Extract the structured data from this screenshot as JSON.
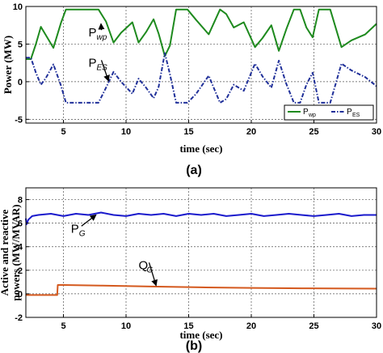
{
  "chart_data": [
    {
      "type": "line",
      "caption": "(a)",
      "xlabel": "time (sec)",
      "ylabel": "Power (MW)",
      "xlim": [
        2,
        30
      ],
      "ylim": [
        -5.5,
        10
      ],
      "xticks": [
        5,
        10,
        15,
        20,
        25,
        30
      ],
      "yticks": [
        -5,
        0,
        5,
        10
      ],
      "grid": true,
      "legend": "bottom-right",
      "legend_items": [
        {
          "base": "P",
          "sub": "wp",
          "color": "#1e8a1e",
          "dash": "solid"
        },
        {
          "base": "P",
          "sub": "ES",
          "color": "#1f2f99",
          "dash": "dashdot"
        }
      ],
      "annotations": [
        {
          "base": "P",
          "sub": "wp",
          "text_at": [
            7.0,
            6.0
          ],
          "arrow_to": [
            8.0,
            7.7
          ]
        },
        {
          "base": "P",
          "sub": "ES",
          "text_at": [
            7.0,
            2.0
          ],
          "arrow_to": [
            8.6,
            0.1
          ]
        }
      ],
      "series": [
        {
          "name": "P_wp",
          "color": "#1e8a1e",
          "dash": "solid",
          "x": [
            2,
            2.4,
            2.8,
            3.2,
            4.2,
            4.8,
            5.2,
            6.5,
            7.8,
            8.4,
            9.0,
            9.6,
            10.5,
            11.0,
            11.6,
            12.2,
            12.6,
            13.1,
            13.5,
            14.0,
            14.5,
            14.9,
            15.6,
            16.6,
            17.5,
            18.0,
            18.6,
            19.4,
            20.3,
            20.9,
            21.6,
            22.2,
            22.8,
            23.4,
            23.9,
            24.4,
            24.9,
            25.4,
            26.0,
            26.3,
            27.2,
            28.0,
            29.1,
            30
          ],
          "y": [
            3.0,
            3.0,
            5.0,
            7.3,
            4.5,
            7.8,
            9.6,
            9.6,
            9.6,
            8.0,
            5.2,
            6.5,
            7.9,
            5.2,
            6.6,
            8.3,
            6.4,
            3.4,
            4.8,
            9.6,
            9.6,
            9.6,
            8.2,
            6.3,
            9.6,
            9.0,
            7.2,
            7.9,
            4.6,
            5.8,
            7.5,
            4.1,
            7.0,
            9.6,
            9.6,
            7.2,
            5.9,
            9.6,
            9.6,
            9.6,
            4.6,
            5.5,
            6.3,
            7.7
          ]
        },
        {
          "name": "P_ES",
          "color": "#1f2f99",
          "dash": "dashdot",
          "x": [
            2,
            2.4,
            2.8,
            3.2,
            3.6,
            4.2,
            4.8,
            5.2,
            6.5,
            7.8,
            8.4,
            9.0,
            9.6,
            10.5,
            11.0,
            11.6,
            12.2,
            12.6,
            13.1,
            13.5,
            14.0,
            14.5,
            14.9,
            15.6,
            16.6,
            17.5,
            18.0,
            18.6,
            19.4,
            20.3,
            20.9,
            21.6,
            22.2,
            22.8,
            23.4,
            23.9,
            24.4,
            24.9,
            25.4,
            26.0,
            26.3,
            27.2,
            28.0,
            29.1,
            30
          ],
          "y": [
            3.2,
            3.2,
            1.2,
            -0.4,
            0.5,
            2.3,
            -0.5,
            -2.8,
            -2.8,
            -2.8,
            -0.8,
            1.3,
            0.0,
            -1.6,
            0.4,
            -0.8,
            -2.2,
            -0.7,
            3.8,
            1.0,
            -2.8,
            -2.8,
            -2.8,
            -1.6,
            0.8,
            -2.8,
            -2.3,
            -0.4,
            -1.2,
            2.4,
            0.7,
            -0.8,
            2.8,
            -0.3,
            -2.8,
            -2.8,
            -0.4,
            1.2,
            -2.8,
            -2.8,
            -2.8,
            2.4,
            1.5,
            0.6,
            -0.6
          ]
        }
      ]
    },
    {
      "type": "line",
      "caption": "(b)",
      "xlabel": "time (sec)",
      "ylabel": "Active and reactive powers (MW/MVAR)",
      "ylabel_lines": [
        "Active and reactive",
        "powers (MW/MVAR)"
      ],
      "xlim": [
        2,
        30
      ],
      "ylim": [
        -2,
        9
      ],
      "xticks": [
        5,
        10,
        15,
        20,
        25,
        30
      ],
      "yticks": [
        -2,
        0,
        2,
        4,
        6,
        8
      ],
      "grid": true,
      "annotations": [
        {
          "base": "P",
          "sub": "G",
          "text_at": [
            5.6,
            5.2
          ],
          "arrow_to": [
            7.6,
            6.7
          ]
        },
        {
          "base": "Q",
          "sub": "G",
          "text_at": [
            11.0,
            2.1
          ],
          "arrow_to": [
            12.4,
            0.7
          ]
        }
      ],
      "series": [
        {
          "name": "P_G",
          "color": "#1a1acc",
          "dash": "solid",
          "x": [
            2,
            2.05,
            2.2,
            2.5,
            3,
            4,
            5,
            6,
            7,
            8,
            9,
            10,
            11,
            12,
            13,
            14,
            15,
            16,
            17,
            18,
            19,
            20,
            21,
            22,
            23,
            24,
            25,
            26,
            27,
            28,
            29,
            30
          ],
          "y": [
            6.4,
            5.9,
            6.3,
            6.6,
            6.7,
            6.8,
            6.6,
            6.8,
            6.7,
            6.9,
            6.7,
            6.6,
            6.8,
            6.7,
            6.8,
            6.6,
            6.8,
            6.7,
            6.8,
            6.6,
            6.7,
            6.8,
            6.6,
            6.7,
            6.8,
            6.7,
            6.6,
            6.7,
            6.8,
            6.6,
            6.7,
            6.7
          ]
        },
        {
          "name": "Q_G",
          "color": "#d4591e",
          "dash": "solid",
          "x": [
            2,
            4.5,
            4.55,
            5,
            8,
            12,
            16,
            20,
            24,
            28,
            30
          ],
          "y": [
            -0.1,
            -0.1,
            0.75,
            0.75,
            0.7,
            0.62,
            0.55,
            0.5,
            0.47,
            0.45,
            0.44
          ]
        }
      ]
    }
  ]
}
